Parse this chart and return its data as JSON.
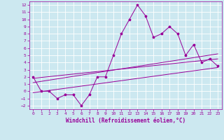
{
  "xlabel": "Windchill (Refroidissement éolien,°C)",
  "bg_color": "#cce8f0",
  "grid_color": "#ffffff",
  "line_color": "#990099",
  "xlim": [
    -0.5,
    23.5
  ],
  "ylim": [
    -2.5,
    12.5
  ],
  "xticks": [
    0,
    1,
    2,
    3,
    4,
    5,
    6,
    7,
    8,
    9,
    10,
    11,
    12,
    13,
    14,
    15,
    16,
    17,
    18,
    19,
    20,
    21,
    22,
    23
  ],
  "yticks": [
    -2,
    -1,
    0,
    1,
    2,
    3,
    4,
    5,
    6,
    7,
    8,
    9,
    10,
    11,
    12
  ],
  "line1_x": [
    0,
    1,
    2,
    3,
    4,
    5,
    6,
    7,
    8,
    9,
    10,
    11,
    12,
    13,
    14,
    15,
    16,
    17,
    18,
    19,
    20,
    21,
    22,
    23
  ],
  "line1_y": [
    2,
    0,
    0,
    -1,
    -0.5,
    -0.5,
    -2,
    -0.5,
    2,
    2,
    5,
    8,
    10,
    12,
    10.5,
    7.5,
    8,
    9,
    8,
    5,
    6.5,
    4,
    4.5,
    3.5
  ],
  "line2_x": [
    0,
    23
  ],
  "line2_y": [
    1.8,
    4.5
  ],
  "line3_x": [
    0,
    23
  ],
  "line3_y": [
    1.2,
    5.2
  ],
  "line4_x": [
    0,
    23
  ],
  "line4_y": [
    -0.2,
    3.3
  ],
  "xlabel_fontsize": 5.5
}
